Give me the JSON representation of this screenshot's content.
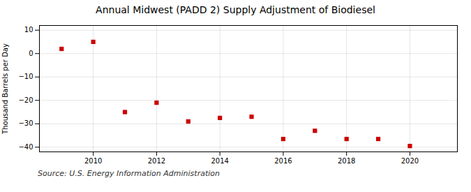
{
  "chart_data": {
    "type": "scatter",
    "title": "Annual Midwest (PADD 2) Supply Adjustment of Biodiesel",
    "ylabel": "Thousand Barrels per Day",
    "annotation": "Source: U.S. Energy Information Administration",
    "x": [
      2009,
      2010,
      2011,
      2012,
      2013,
      2014,
      2015,
      2016,
      2017,
      2018,
      2019,
      2020
    ],
    "values": [
      2.0,
      5.0,
      -25.0,
      -21.0,
      -29.0,
      -27.5,
      -27.0,
      -36.5,
      -33.0,
      -36.5,
      -36.5,
      -39.5
    ],
    "color": "#cc0000",
    "marker": "square",
    "xlim": [
      2008.3,
      2021.5
    ],
    "ylim": [
      -42,
      12
    ],
    "xticks": [
      2010,
      2012,
      2014,
      2016,
      2018,
      2020
    ],
    "yticks": [
      -40,
      -30,
      -20,
      -10,
      0,
      10
    ],
    "grid": true
  }
}
